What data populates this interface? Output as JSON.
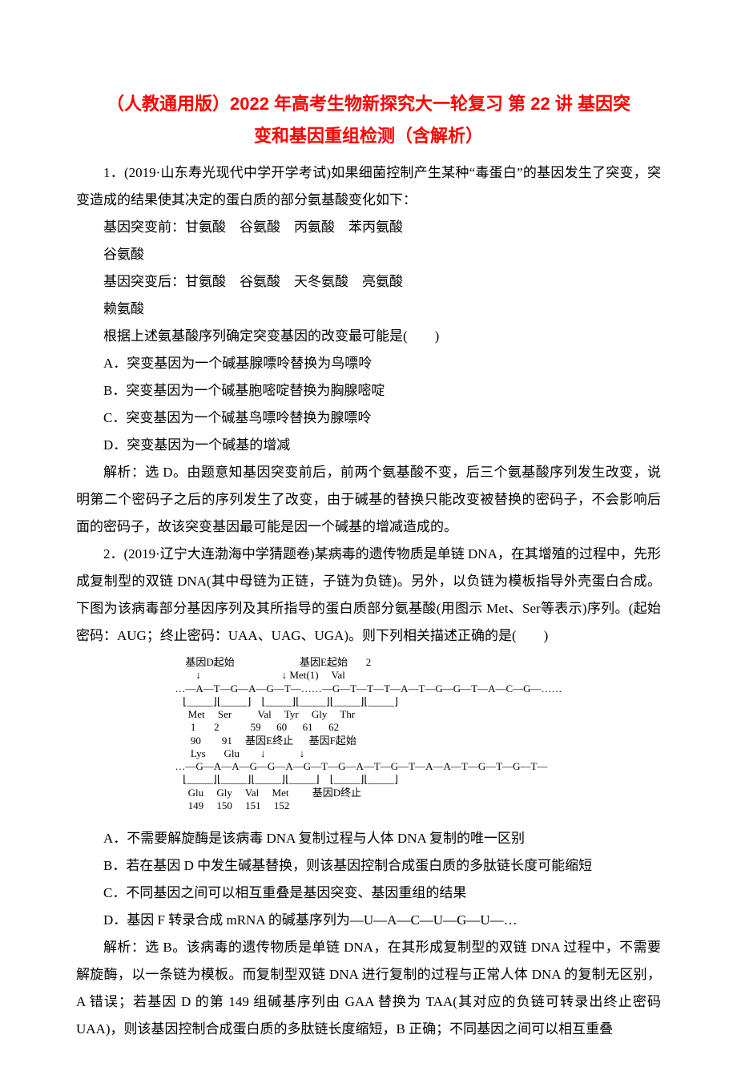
{
  "title_line1": "（人教通用版）2022 年高考生物新探究大一轮复习 第 22 讲 基因突",
  "title_line2": "变和基因重组检测（含解析）",
  "q1": {
    "stem1": "1．(2019·山东寿光现代中学开学考试)如果细菌控制产生某种“毒蛋白”的基因发生了突变，突变造成的结果使其决定的蛋白质的部分氨基酸变化如下：",
    "before_label": "基因突变前：甘氨酸　谷氨酸　丙氨酸　苯丙氨酸",
    "before_cont": "谷氨酸",
    "after_label": "基因突变后：甘氨酸　谷氨酸　天冬氨酸　亮氨酸",
    "after_cont": "赖氨酸",
    "stem2": "根据上述氨基酸序列确定突变基因的改变最可能是(　　)",
    "optA": "A．突变基因为一个碱基腺嘌呤替换为鸟嘌呤",
    "optB": "B．突变基因为一个碱基胞嘧啶替换为胸腺嘧啶",
    "optC": "C．突变基因为一个碱基鸟嘌呤替换为腺嘌呤",
    "optD": "D．突变基因为一个碱基的增减",
    "explain": "解析：选 D。由题意知基因突变前后，前两个氨基酸不变，后三个氨基酸序列发生改变，说明第二个密码子之后的序列发生了改变，由于碱基的替换只能改变被替换的密码子，不会影响后面的密码子，故该突变基因最可能是因一个碱基的增减造成的。"
  },
  "q2": {
    "stem": "2．(2019·辽宁大连渤海中学猜题卷)某病毒的遗传物质是单链 DNA，在其增殖的过程中，先形成复制型的双链 DNA(其中母链为正链，子链为负链)。另外，以负链为模板指导外壳蛋白合成。下图为该病毒部分基因序列及其所指导的蛋白质部分氨基酸(用图示 Met、Ser等表示)序列。(起始密码：AUG；终止密码：UAA、UAG、UGA)。则下列相关描述正确的是(　　)",
    "optA": "A．不需要解旋酶是该病毒 DNA 复制过程与人体 DNA 复制的唯一区别",
    "optB": "B．若在基因 D 中发生碱基替换，则该基因控制合成蛋白质的多肽链长度可能缩短",
    "optC": "C．不同基因之间可以相互重叠是基因突变、基因重组的结果",
    "optD": "D．基因 F 转录合成 mRNA 的碱基序列为—U—A—C—U—G—U—…",
    "explain": "解析：选 B。该病毒的遗传物质是单链 DNA，在其形成复制型的双链 DNA 过程中，不需要解旋酶，以一条链为模板。而复制型双链 DNA 进行复制的过程与正常人体 DNA 的复制无区别，A 错误；若基因 D 的第 149 组碱基序列由 GAA 替换为 TAA(其对应的负链可转录出终止密码 UAA)，则该基因控制合成蛋白质的多肽链长度缩短，B 正确；不同基因之间可以相互重叠"
  },
  "diagram": {
    "row1": "    基因D起始                         基因E起始       2",
    "row2": "        ↓                               ↓ Met(1)     Val",
    "row3": "…—A—T—G—A—G—T—……—G—T—T—T—A—T—G—G—T—A—C—G—……",
    "row4": "   ⌊_____⌋⌊_____⌋    ⌊_____⌋⌊_____⌋⌊_____⌋⌊_____⌋",
    "row5": "     Met     Ser          Val     Tyr     Gly     Thr",
    "row6": "      1       2            59      60      61      62",
    "row7": "",
    "row8": "      90        91     基因E终止      基因F起始",
    "row9": "      Lys       Glu        ↓             ↓",
    "row10": "…—G—A—A—G—G—A—G—T—G—A—T—G—T—A—A—T—G—T—G—T—",
    "row11": "   ⌊_____⌋⌊_____⌋⌊_____⌋⌊_____⌋    ⌊_____⌋⌊_____⌋",
    "row12": "     Glu     Gly     Val     Met         基因D终止",
    "row13": "     149     150     151     152"
  }
}
